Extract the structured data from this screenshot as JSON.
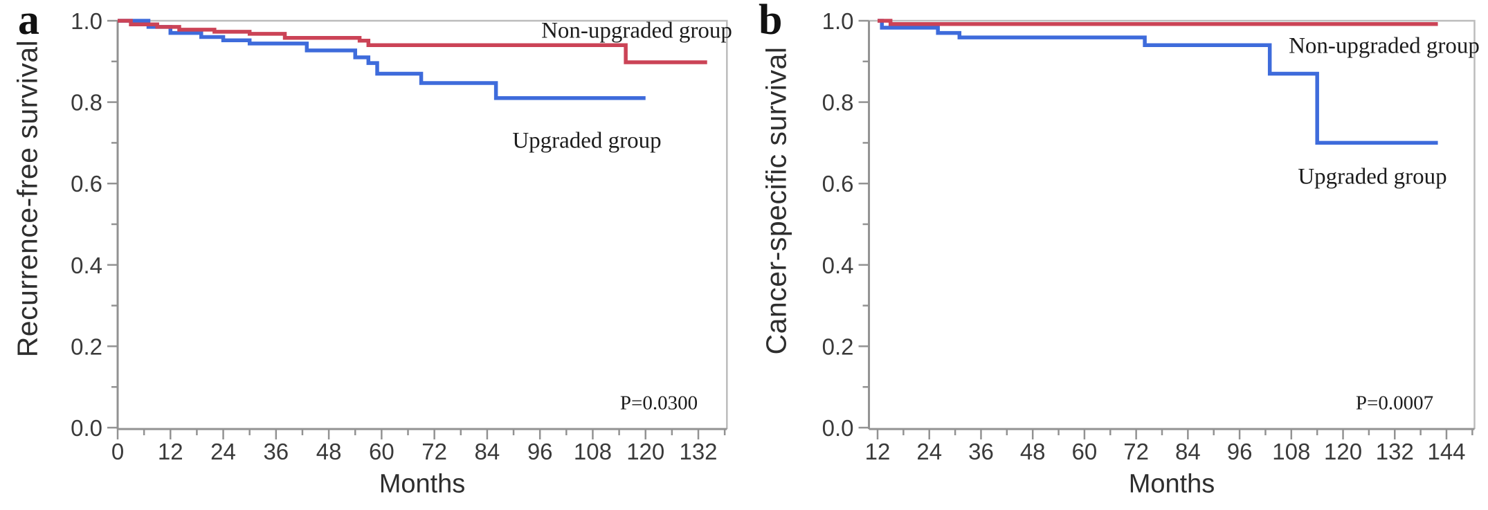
{
  "colors": {
    "non_upgraded_red": "#cb4356",
    "upgraded_blue": "#3e6bdb",
    "axis_gray": "#929292",
    "frame_gray": "#bcbcbc",
    "tick_label_text": "#3a3a3a",
    "serif_label_text": "#1c1c1c"
  },
  "chart_data": [
    {
      "id": "a",
      "panel_label": "a",
      "type": "line",
      "subtype": "kaplan-meier-step",
      "ylabel": "Recurrence-free survival",
      "xlabel": "Months",
      "p_value": "P=0.0300",
      "xlim": [
        0,
        138.5
      ],
      "ylim": [
        0.0,
        1.0
      ],
      "x_major_ticks": [
        0,
        12,
        24,
        36,
        48,
        60,
        72,
        84,
        96,
        108,
        120,
        132
      ],
      "x_minor_interval": 6,
      "y_major_ticks": [
        1.0,
        0.8,
        0.6,
        0.4,
        0.2,
        0.0
      ],
      "y_tick_labels": [
        "1.0",
        "0.8",
        "0.6",
        "0.4",
        "0.2",
        "0.0"
      ],
      "y_minor_ticks": [
        0.9,
        0.7,
        0.5,
        0.3,
        0.1
      ],
      "grid": false,
      "legend_position": "annotated-on-plot",
      "series": [
        {
          "name": "Non-upgraded group",
          "color": "#cb4356",
          "end_month": 134,
          "points": [
            [
              0,
              1.0
            ],
            [
              3,
              0.991
            ],
            [
              9,
              0.985
            ],
            [
              14,
              0.978
            ],
            [
              22,
              0.973
            ],
            [
              30,
              0.968
            ],
            [
              38,
              0.958
            ],
            [
              55,
              0.951
            ],
            [
              57,
              0.94
            ],
            [
              115.5,
              0.898
            ]
          ]
        },
        {
          "name": "Upgraded group",
          "color": "#3e6bdb",
          "end_month": 120,
          "points": [
            [
              0,
              1.0
            ],
            [
              7,
              0.985
            ],
            [
              12,
              0.97
            ],
            [
              19,
              0.96
            ],
            [
              24,
              0.952
            ],
            [
              30,
              0.944
            ],
            [
              43,
              0.927
            ],
            [
              54,
              0.91
            ],
            [
              57,
              0.896
            ],
            [
              59,
              0.87
            ],
            [
              69,
              0.847
            ],
            [
              86,
              0.81
            ]
          ]
        }
      ]
    },
    {
      "id": "b",
      "panel_label": "b",
      "type": "line",
      "subtype": "kaplan-meier-step",
      "ylabel": "Cancer-specific survival",
      "xlabel": "Months",
      "p_value": "P=0.0007",
      "xlim": [
        10,
        150.5
      ],
      "ylim": [
        0.0,
        1.0
      ],
      "x_major_ticks": [
        12,
        24,
        36,
        48,
        60,
        72,
        84,
        96,
        108,
        120,
        132,
        144
      ],
      "x_minor_interval": 6,
      "y_major_ticks": [
        1.0,
        0.8,
        0.6,
        0.4,
        0.2,
        0.0
      ],
      "y_tick_labels": [
        "1.0",
        "0.8",
        "0.6",
        "0.4",
        "0.2",
        "0.0"
      ],
      "y_minor_ticks": [
        0.9,
        0.7,
        0.5,
        0.3,
        0.1
      ],
      "grid": false,
      "legend_position": "annotated-on-plot",
      "series": [
        {
          "name": "Non-upgraded group",
          "color": "#cb4356",
          "end_month": 142,
          "points": [
            [
              12,
              1.0
            ],
            [
              15,
              0.992
            ]
          ]
        },
        {
          "name": "Upgraded group",
          "color": "#3e6bdb",
          "end_month": 142,
          "points": [
            [
              12,
              1.0
            ],
            [
              13,
              0.983
            ],
            [
              26,
              0.97
            ],
            [
              31,
              0.959
            ],
            [
              74,
              0.94
            ],
            [
              103,
              0.87
            ],
            [
              114,
              0.7
            ]
          ]
        }
      ]
    }
  ]
}
